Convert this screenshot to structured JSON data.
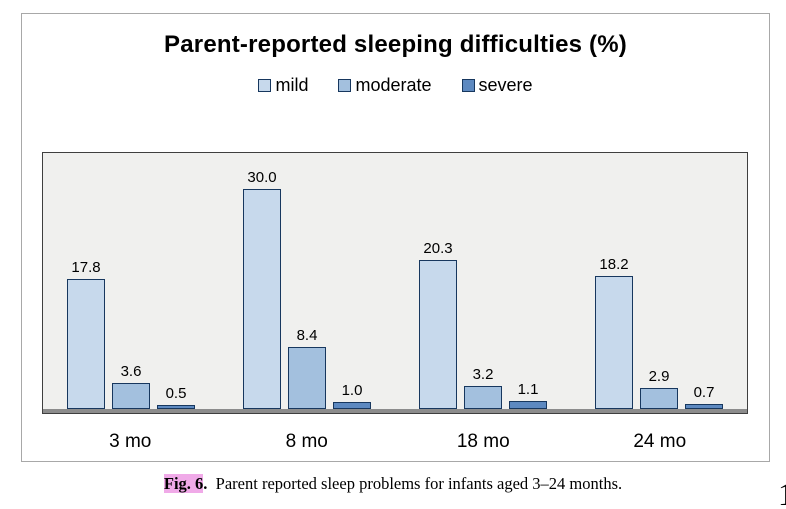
{
  "figure": {
    "title": "Parent-reported sleeping difficulties (%)",
    "caption": {
      "label": "Fig. 6",
      "label_suffix": ".",
      "text": "Parent reported sleep problems for infants aged 3–24 months.",
      "highlight_color": "#f0aae8"
    },
    "clipped_glyph": "1"
  },
  "chart_data": {
    "type": "bar",
    "title": "Parent-reported sleeping difficulties (%)",
    "categories": [
      "3 mo",
      "8 mo",
      "18 mo",
      "24 mo"
    ],
    "series": [
      {
        "name": "mild",
        "color": "#c7d9ec",
        "values": [
          17.8,
          30.0,
          20.3,
          18.2
        ]
      },
      {
        "name": "moderate",
        "color": "#a3c0de",
        "values": [
          3.6,
          8.4,
          3.2,
          2.9
        ]
      },
      {
        "name": "severe",
        "color": "#5d89c0",
        "values": [
          0.5,
          1.0,
          1.1,
          0.7
        ]
      }
    ],
    "xlabel": "",
    "ylabel": "",
    "ylim": [
      0,
      35.2
    ],
    "grid": false,
    "legend_position": "top",
    "bar_labels": true
  },
  "colors": {
    "bar_border": "#17375e",
    "plot_background": "#f0f0ee",
    "plot_border": "#3f3f3f",
    "baseline": "#8c8c8c",
    "figure_border": "#a8a8a8"
  }
}
